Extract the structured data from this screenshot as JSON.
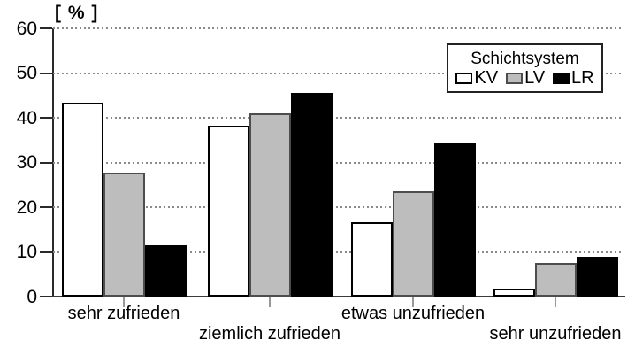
{
  "chart_data": {
    "type": "bar",
    "title": "",
    "ylabel": "[ % ]",
    "xlabel": "",
    "categories": [
      "sehr zufrieden",
      "ziemlich zufrieden",
      "etwas unzufrieden",
      "sehr unzufrieden"
    ],
    "series": [
      {
        "name": "KV",
        "fill": "#ffffff",
        "border": "#000000",
        "values": [
          43.3,
          38.2,
          16.6,
          1.8
        ]
      },
      {
        "name": "LV",
        "fill": "#bdbdbd",
        "border": "#4d4d4d",
        "values": [
          27.8,
          41.0,
          23.5,
          7.6
        ]
      },
      {
        "name": "LR",
        "fill": "#000000",
        "border": "#000000",
        "values": [
          11.4,
          45.6,
          34.2,
          9.0
        ]
      }
    ],
    "legend": {
      "title": "Schichtsystem",
      "position": "top-right",
      "entries": [
        "KV",
        "LV",
        "LR"
      ]
    },
    "y_ticks": [
      0,
      10,
      20,
      30,
      40,
      50,
      60
    ],
    "ylim": [
      0,
      60
    ],
    "grid": "horizontal-dotted",
    "colors": {
      "background": "#ffffff",
      "axis": "#2a2a2a",
      "gridline": "#8a8a8a",
      "text": "#000000"
    }
  }
}
